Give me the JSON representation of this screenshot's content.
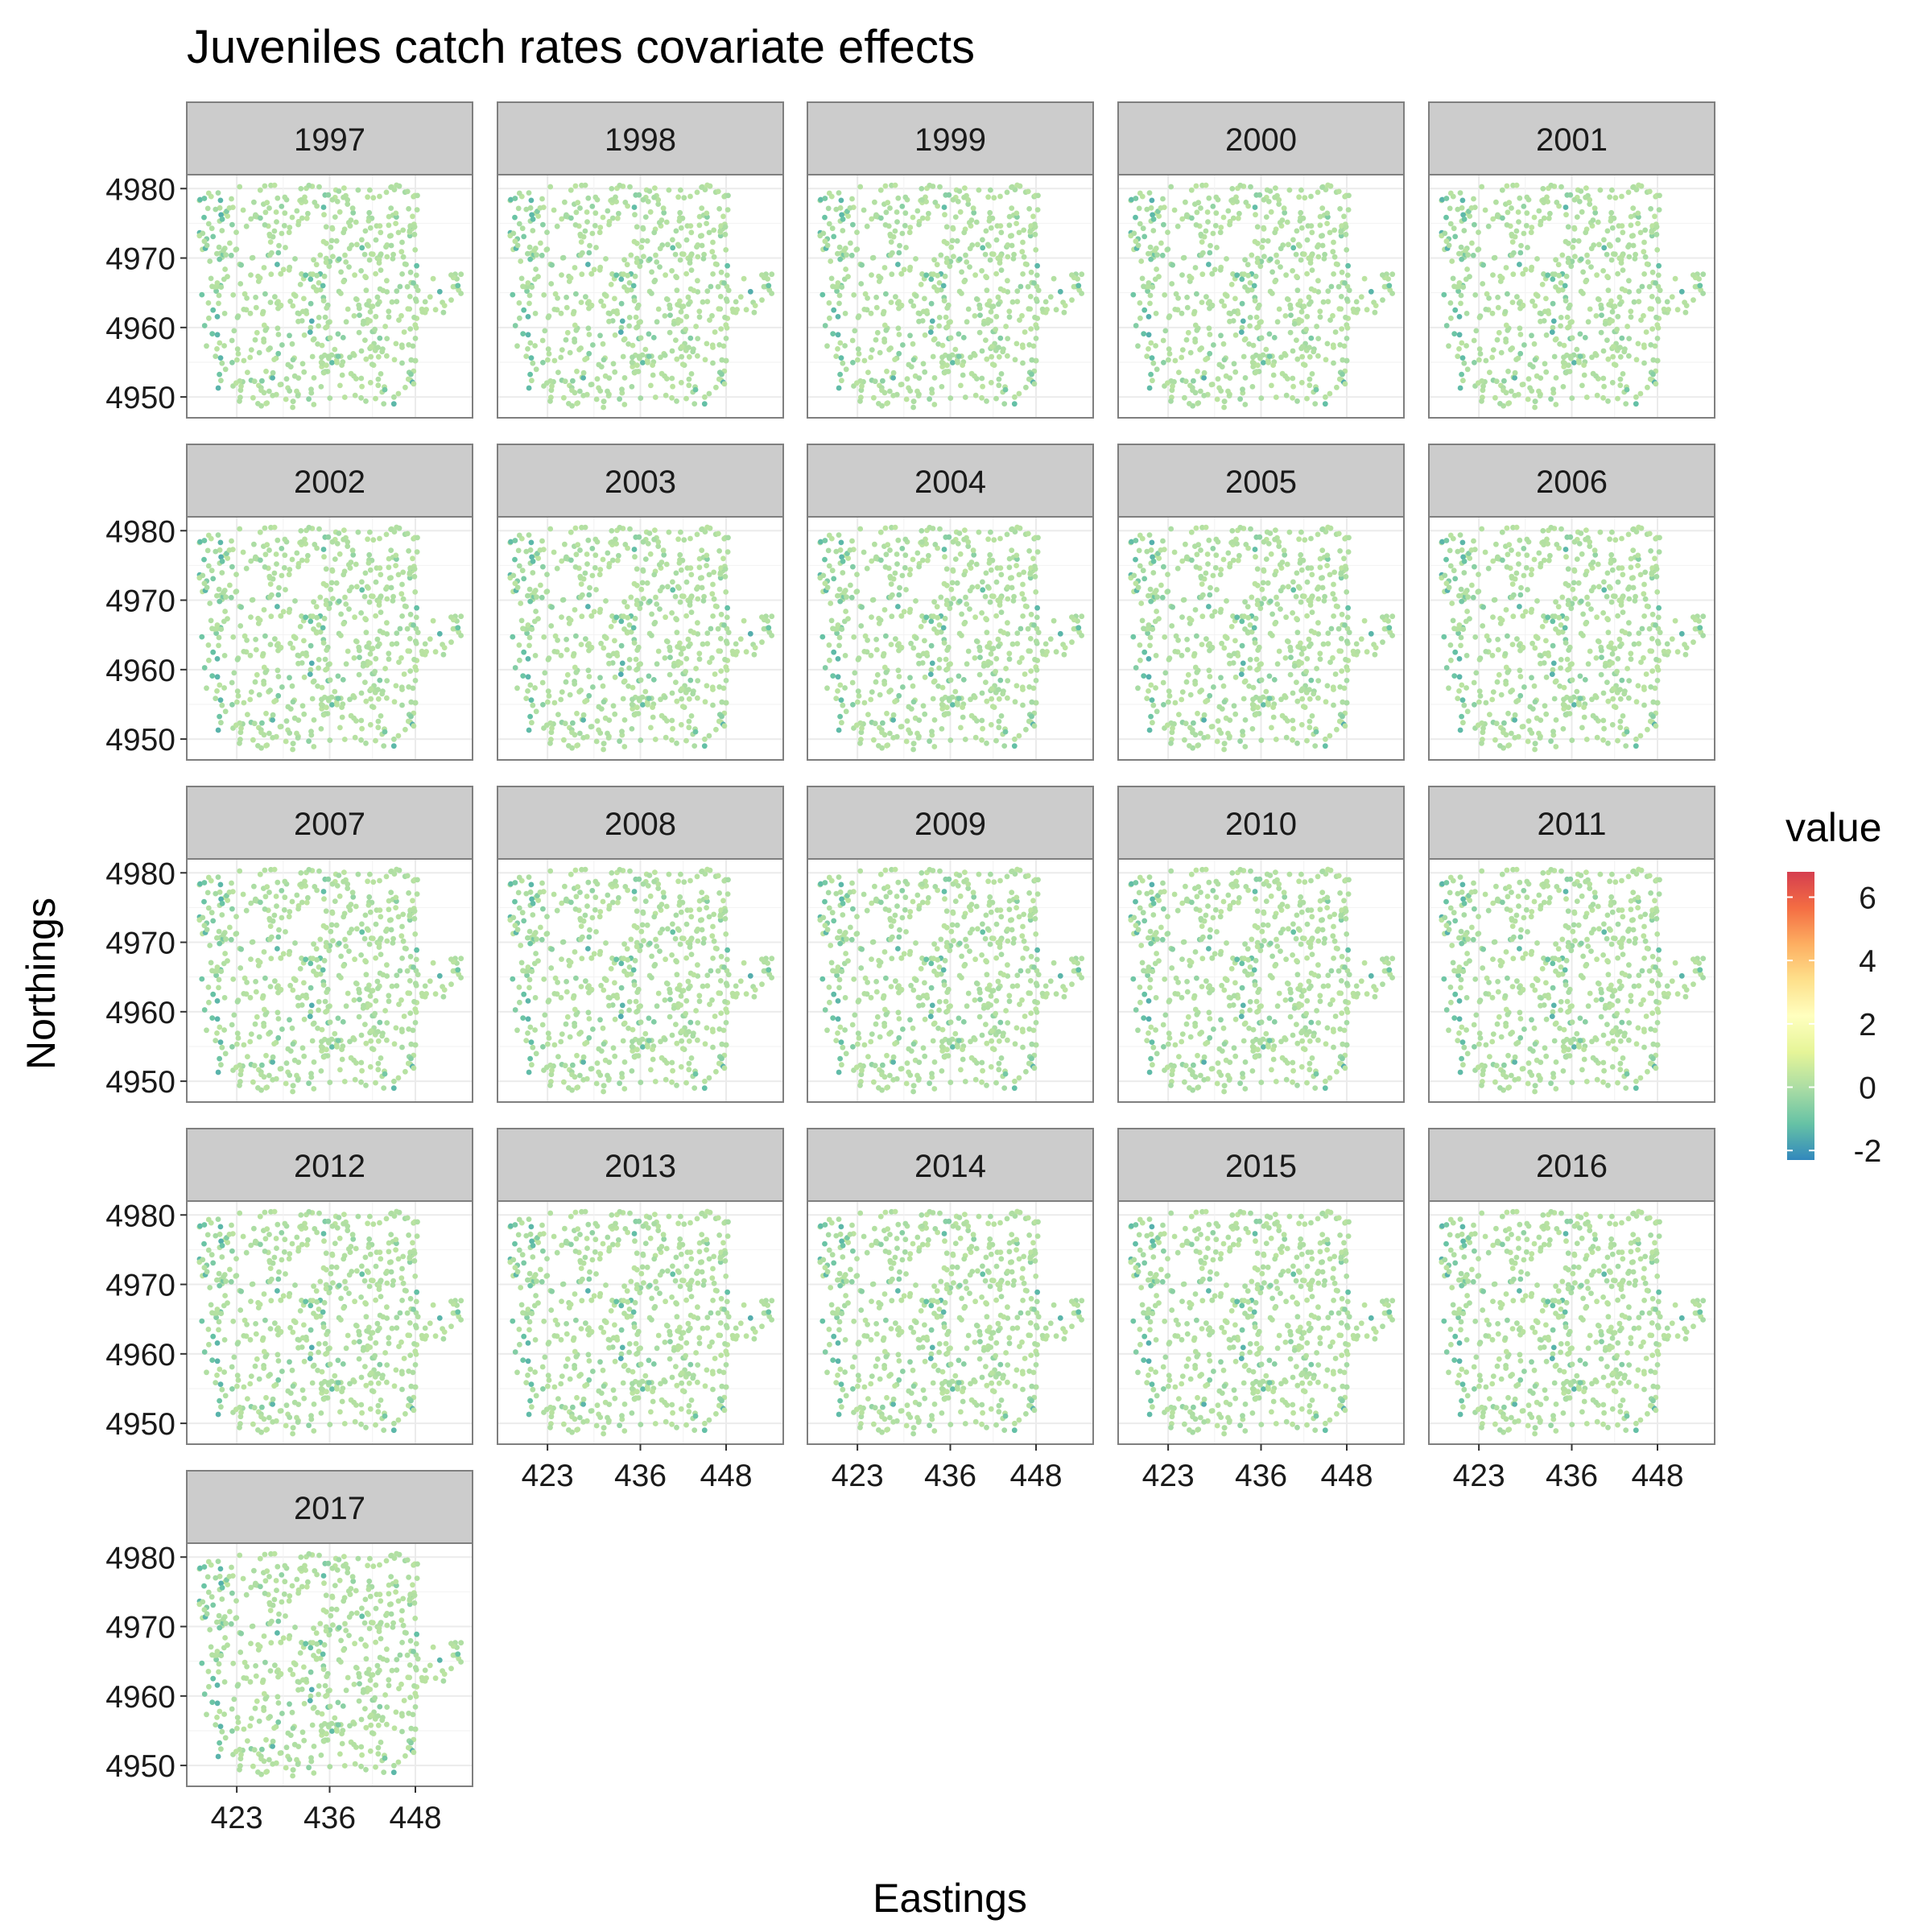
{
  "chart_data": {
    "type": "scatter",
    "title": "Juveniles catch rates covariate effects",
    "xlabel": "Eastings",
    "ylabel": "Northings",
    "x_ticks": [
      423,
      436,
      448
    ],
    "y_ticks": [
      4950,
      4960,
      4970,
      4980
    ],
    "xlim": [
      416,
      456
    ],
    "ylim": [
      4947,
      4982
    ],
    "grid": true,
    "facet_by": "year",
    "facets": [
      "1997",
      "1998",
      "1999",
      "2000",
      "2001",
      "2002",
      "2003",
      "2004",
      "2005",
      "2006",
      "2007",
      "2008",
      "2009",
      "2010",
      "2011",
      "2012",
      "2013",
      "2014",
      "2015",
      "2016",
      "2017"
    ],
    "legend": {
      "title": "value",
      "position": "right",
      "ticks": [
        6,
        4,
        2,
        0,
        -2
      ],
      "range": [
        -2.3,
        6.8
      ],
      "colors": [
        "#3288bd",
        "#66c2a5",
        "#abdda4",
        "#e6f598",
        "#ffffbf",
        "#fee08b",
        "#fdae61",
        "#f46d43",
        "#d53e4f"
      ]
    },
    "point_value_typical": 0.3,
    "point_value_min": -1.5,
    "point_color": "#c8e89a"
  }
}
